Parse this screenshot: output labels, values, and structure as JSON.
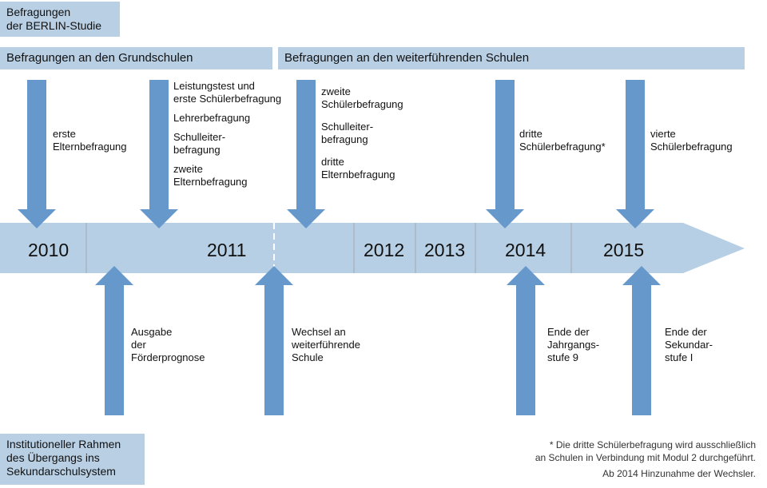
{
  "title": "Befragungen der BERLIN-Studie",
  "title_lines": [
    "Befragungen",
    "der BERLIN-Studie"
  ],
  "header_left": "Befragungen an den Grundschulen",
  "header_right": "Befragungen an den weiterführenden Schulen",
  "years": [
    "2010",
    "2011",
    "2012",
    "2013",
    "2014",
    "2015"
  ],
  "top_events": [
    {
      "lines": [
        "erste",
        "Elternbefragung"
      ]
    },
    {
      "groups": [
        [
          "Leistungstest und",
          "erste Schülerbefragung"
        ],
        [
          "Lehrerbefragung"
        ],
        [
          "Schulleiter-",
          "befragung"
        ],
        [
          "zweite",
          "Elternbefragung"
        ]
      ]
    },
    {
      "groups": [
        [
          "zweite",
          "Schülerbefragung"
        ],
        [
          "Schulleiter-",
          "befragung"
        ],
        [
          "dritte",
          "Elternbefragung"
        ]
      ]
    },
    {
      "lines": [
        "dritte",
        "Schülerbefragung*"
      ]
    },
    {
      "lines": [
        "vierte",
        "Schülerbefragung"
      ]
    }
  ],
  "bottom_events": [
    {
      "lines": [
        "Ausgabe",
        "der",
        "Förderprognose"
      ]
    },
    {
      "lines": [
        "Wechsel an",
        "weiterführende",
        "Schule"
      ]
    },
    {
      "lines": [
        "Ende der",
        "Jahrgangs-",
        "stufe 9"
      ]
    },
    {
      "lines": [
        "Ende der",
        "Sekundar-",
        "stufe I"
      ]
    }
  ],
  "footer_label_lines": [
    "Institutioneller Rahmen",
    "des Übergangs ins",
    "Sekundarschulsystem"
  ],
  "notes": [
    "* Die dritte Schülerbefragung wird ausschließlich",
    "an Schulen in Verbindung mit Modul 2 durchgeführt.",
    "Ab 2014 Hinzunahme der Wechsler."
  ],
  "colors": {
    "box": "#b8cfe4",
    "timeline": "#b7cfe4",
    "arrow": "#6798cc"
  }
}
